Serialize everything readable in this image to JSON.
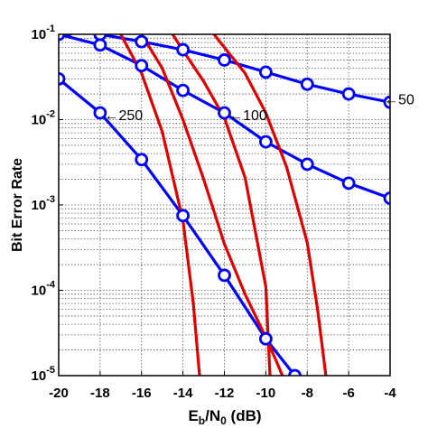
{
  "chart_data": {
    "type": "line",
    "xlabel": {
      "main": "E",
      "sub1": "b",
      "mid": "/N",
      "sub2": "0",
      "unit": " (dB)"
    },
    "ylabel": "Bit Error Rate",
    "xlim": [
      -20,
      -4
    ],
    "ylim": [
      1e-05,
      0.1
    ],
    "y_scale": "log",
    "grid": true,
    "x_ticks": [
      -20,
      -18,
      -16,
      -14,
      -12,
      -10,
      -8,
      -6,
      -4
    ],
    "x_tick_labels": [
      "-20",
      "-18",
      "-16",
      "-14",
      "-12",
      "-10",
      "-8",
      "-6",
      "-4"
    ],
    "y_ticks": [
      {
        "value": 0.1,
        "base": "10",
        "exp": "-1"
      },
      {
        "value": 0.01,
        "base": "10",
        "exp": "-2"
      },
      {
        "value": 0.001,
        "base": "10",
        "exp": "-3"
      },
      {
        "value": 0.0001,
        "base": "10",
        "exp": "-4"
      },
      {
        "value": 1e-05,
        "base": "10",
        "exp": "-5"
      }
    ],
    "series": [
      {
        "color": "#0000ff",
        "marker": "circle",
        "x": [
          -19.5,
          -18,
          -16,
          -14,
          -12,
          -10,
          -8,
          -6,
          -4
        ],
        "y": [
          0.115,
          0.1,
          0.082,
          0.066,
          0.05,
          0.036,
          0.026,
          0.02,
          0.016
        ]
      },
      {
        "color": "#0000ff",
        "marker": "circle",
        "x": [
          -20.5,
          -20,
          -18,
          -16,
          -14,
          -12,
          -10,
          -8,
          -6,
          -4
        ],
        "y": [
          0.13,
          0.1,
          0.075,
          0.043,
          0.022,
          0.012,
          0.0055,
          0.003,
          0.0018,
          0.0012
        ]
      },
      {
        "color": "#0000ff",
        "marker": "circle",
        "x": [
          -20,
          -18,
          -16,
          -14,
          -12,
          -10,
          -8.6
        ],
        "y": [
          0.03,
          0.012,
          0.0034,
          0.00075,
          0.00015,
          2.7e-05,
          1e-05
        ]
      },
      {
        "color": "#e00000",
        "marker": "none",
        "x": [
          -17,
          -16,
          -15,
          -14,
          -13.5,
          -13.2
        ],
        "y": [
          0.1,
          0.035,
          0.0072,
          0.00066,
          7e-05,
          1e-05
        ]
      },
      {
        "color": "#e00000",
        "marker": "none",
        "x": [
          -14.5,
          -14,
          -13,
          -12,
          -11,
          -10,
          -9.8
        ],
        "y": [
          0.1,
          0.065,
          0.028,
          0.0105,
          0.0021,
          0.00011,
          1e-05
        ]
      },
      {
        "color": "#e00000",
        "marker": "none",
        "x": [
          -16,
          -15,
          -14,
          -13,
          -12,
          -11,
          -10,
          -9.5,
          -9.2
        ],
        "y": [
          0.1,
          0.04,
          0.01,
          0.002,
          0.00035,
          9e-05,
          2.8e-05,
          1.5e-05,
          1e-05
        ]
      },
      {
        "color": "#e00000",
        "marker": "none",
        "x": [
          -12.5,
          -12,
          -11,
          -10,
          -9,
          -8,
          -7.5,
          -7.1
        ],
        "y": [
          0.1,
          0.07,
          0.035,
          0.012,
          0.0028,
          0.00036,
          6e-05,
          1e-05
        ]
      }
    ],
    "annotations": [
      {
        "text": "←50",
        "x": -4.3,
        "y": 0.0175
      },
      {
        "text": "←250",
        "x": -17.8,
        "y": 0.0115
      },
      {
        "text": "←100",
        "x": -11.8,
        "y": 0.0115
      }
    ]
  }
}
